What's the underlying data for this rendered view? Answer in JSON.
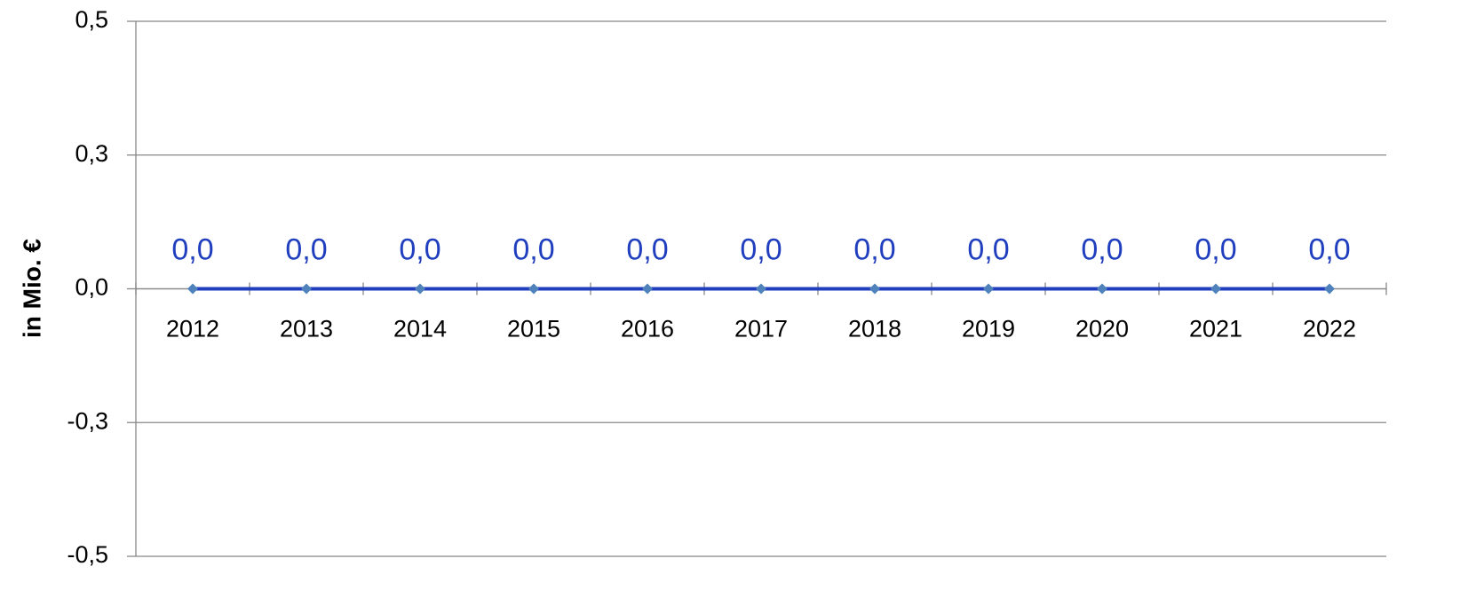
{
  "chart_data": {
    "type": "line",
    "y_label": "in Mio. €",
    "categories": [
      "2012",
      "2013",
      "2014",
      "2015",
      "2016",
      "2017",
      "2018",
      "2019",
      "2020",
      "2021",
      "2022"
    ],
    "series": [
      {
        "name": null,
        "color": "#1f3fbf",
        "marker_color": "#4f81bd",
        "values": [
          0,
          0,
          0,
          0,
          0,
          0,
          0,
          0,
          0,
          0,
          0
        ],
        "value_labels": [
          "0,0",
          "0,0",
          "0,0",
          "0,0",
          "0,0",
          "0,0",
          "0,0",
          "0,0",
          "0,0",
          "0,0",
          "0,0"
        ]
      }
    ],
    "ylim": [
      -0.5,
      0.5
    ],
    "yticks": [
      {
        "value": -0.5,
        "label": "-0,5"
      },
      {
        "value": -0.25,
        "label": "-0,3"
      },
      {
        "value": 0,
        "label": "0,0"
      },
      {
        "value": 0.25,
        "label": "0,3"
      },
      {
        "value": 0.5,
        "label": "0,5"
      }
    ],
    "grid": true
  }
}
